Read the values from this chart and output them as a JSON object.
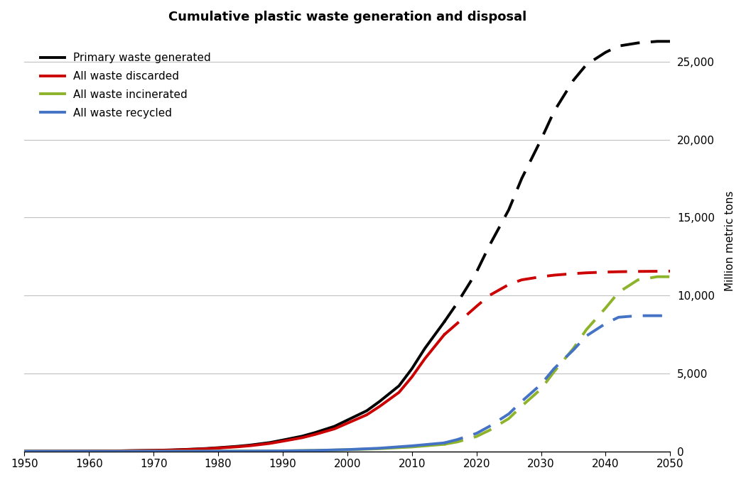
{
  "title": "Cumulative plastic waste generation and disposal",
  "ylabel": "Million metric tons",
  "xlim": [
    1950,
    2050
  ],
  "ylim": [
    0,
    27000
  ],
  "yticks": [
    0,
    5000,
    10000,
    15000,
    20000,
    25000
  ],
  "xticks": [
    1950,
    1960,
    1970,
    1980,
    1990,
    2000,
    2010,
    2020,
    2030,
    2040,
    2050
  ],
  "transition_year": 2015,
  "series": [
    {
      "label": "Primary waste generated",
      "color": "#000000",
      "historical_years": [
        1950,
        1952,
        1955,
        1958,
        1960,
        1963,
        1965,
        1967,
        1970,
        1973,
        1975,
        1978,
        1980,
        1983,
        1985,
        1988,
        1990,
        1993,
        1995,
        1998,
        2000,
        2003,
        2005,
        2008,
        2010,
        2012,
        2015
      ],
      "historical_values": [
        2,
        3,
        5,
        9,
        13,
        22,
        32,
        44,
        60,
        90,
        120,
        175,
        230,
        320,
        400,
        560,
        720,
        970,
        1200,
        1600,
        2000,
        2600,
        3200,
        4200,
        5300,
        6600,
        8300
      ],
      "projection_years": [
        2015,
        2017,
        2020,
        2022,
        2025,
        2027,
        2030,
        2032,
        2035,
        2037,
        2040,
        2042,
        2045,
        2048,
        2050
      ],
      "projection_values": [
        8300,
        9500,
        11500,
        13200,
        15500,
        17500,
        20000,
        21800,
        23800,
        24800,
        25600,
        26000,
        26200,
        26300,
        26300
      ]
    },
    {
      "label": "All waste discarded",
      "color": "#cc0000",
      "historical_years": [
        1950,
        1952,
        1955,
        1958,
        1960,
        1963,
        1965,
        1967,
        1970,
        1973,
        1975,
        1978,
        1980,
        1983,
        1985,
        1988,
        1990,
        1993,
        1995,
        1998,
        2000,
        2003,
        2005,
        2008,
        2010,
        2012,
        2015
      ],
      "historical_values": [
        2,
        3,
        5,
        8,
        12,
        20,
        29,
        40,
        55,
        82,
        108,
        158,
        208,
        288,
        360,
        505,
        648,
        872,
        1080,
        1440,
        1800,
        2340,
        2880,
        3780,
        4770,
        5940,
        7480
      ],
      "projection_years": [
        2015,
        2017,
        2020,
        2022,
        2025,
        2027,
        2030,
        2032,
        2035,
        2037,
        2040,
        2042,
        2045,
        2048,
        2050
      ],
      "projection_values": [
        7480,
        8200,
        9300,
        10000,
        10700,
        11000,
        11200,
        11300,
        11400,
        11450,
        11500,
        11520,
        11540,
        11550,
        11560
      ]
    },
    {
      "label": "All waste incinerated",
      "color": "#8db32a",
      "historical_years": [
        1950,
        1955,
        1960,
        1965,
        1970,
        1975,
        1980,
        1985,
        1990,
        1995,
        2000,
        2005,
        2010,
        2015
      ],
      "historical_values": [
        0,
        0,
        0,
        1,
        2,
        4,
        8,
        16,
        30,
        55,
        100,
        170,
        280,
        450
      ],
      "projection_years": [
        2015,
        2017,
        2020,
        2022,
        2025,
        2027,
        2030,
        2032,
        2035,
        2037,
        2040,
        2042,
        2045,
        2048,
        2050
      ],
      "projection_values": [
        450,
        600,
        950,
        1350,
        2100,
        2900,
        4000,
        5100,
        6600,
        7800,
        9200,
        10200,
        11000,
        11200,
        11200
      ]
    },
    {
      "label": "All waste recycled",
      "color": "#4472c4",
      "historical_years": [
        1950,
        1955,
        1960,
        1965,
        1970,
        1975,
        1980,
        1985,
        1990,
        1995,
        2000,
        2005,
        2010,
        2015
      ],
      "historical_values": [
        0,
        0,
        0,
        0,
        1,
        2,
        5,
        12,
        25,
        55,
        110,
        200,
        350,
        540
      ],
      "projection_years": [
        2015,
        2017,
        2020,
        2022,
        2025,
        2027,
        2030,
        2032,
        2035,
        2037,
        2040,
        2042,
        2045,
        2048,
        2050
      ],
      "projection_values": [
        540,
        750,
        1150,
        1600,
        2400,
        3200,
        4300,
        5300,
        6500,
        7400,
        8200,
        8600,
        8700,
        8700,
        8700
      ]
    }
  ],
  "linewidth": 2.8,
  "grid_color": "#c0c0c0",
  "grid_lw": 0.8,
  "title_fontsize": 13,
  "label_fontsize": 11,
  "tick_fontsize": 11,
  "legend_fontsize": 11
}
